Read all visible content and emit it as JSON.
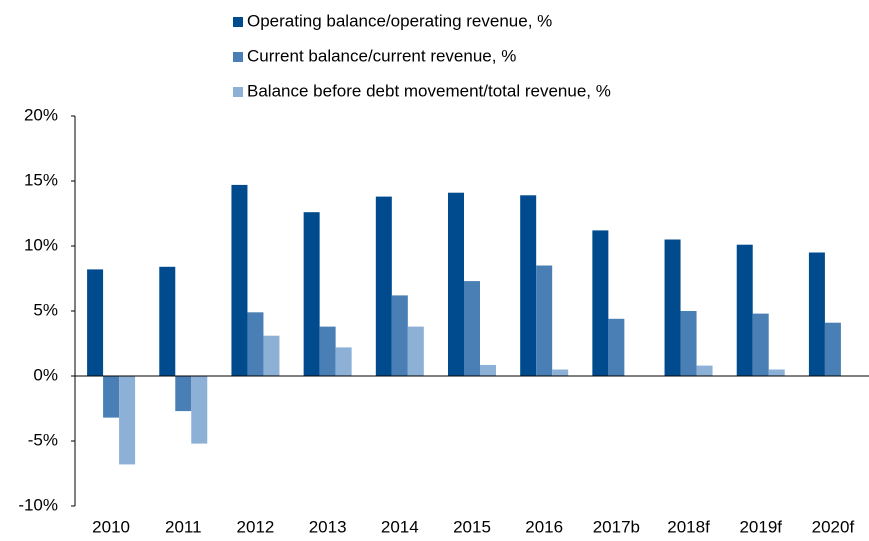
{
  "chart_data": {
    "type": "bar",
    "categories": [
      "2010",
      "2011",
      "2012",
      "2013",
      "2014",
      "2015",
      "2016",
      "2017b",
      "2018f",
      "2019f",
      "2020f"
    ],
    "series": [
      {
        "name": "Operating balance/operating revenue, %",
        "color": "#004b8d",
        "values": [
          8.2,
          8.4,
          14.7,
          12.6,
          13.8,
          14.1,
          13.9,
          11.2,
          10.5,
          10.1,
          9.5
        ]
      },
      {
        "name": "Current balance/current revenue, %",
        "color": "#4a7fb5",
        "values": [
          -3.2,
          -2.7,
          4.9,
          3.8,
          6.2,
          7.3,
          8.5,
          4.4,
          5.0,
          4.8,
          4.1
        ]
      },
      {
        "name": "Balance before debt movement/total revenue, %",
        "color": "#8cb0d6",
        "values": [
          -6.8,
          -5.2,
          3.1,
          2.2,
          3.8,
          0.85,
          0.5,
          null,
          0.8,
          0.5,
          null
        ]
      }
    ],
    "ylim": [
      -10,
      20
    ],
    "yticks": [
      {
        "value": -10,
        "label": "-10%"
      },
      {
        "value": -5,
        "label": "-5%"
      },
      {
        "value": 0,
        "label": "0%"
      },
      {
        "value": 5,
        "label": "5%"
      },
      {
        "value": 10,
        "label": "10%"
      },
      {
        "value": 15,
        "label": "15%"
      },
      {
        "value": 20,
        "label": "20%"
      }
    ],
    "legend": "top"
  }
}
